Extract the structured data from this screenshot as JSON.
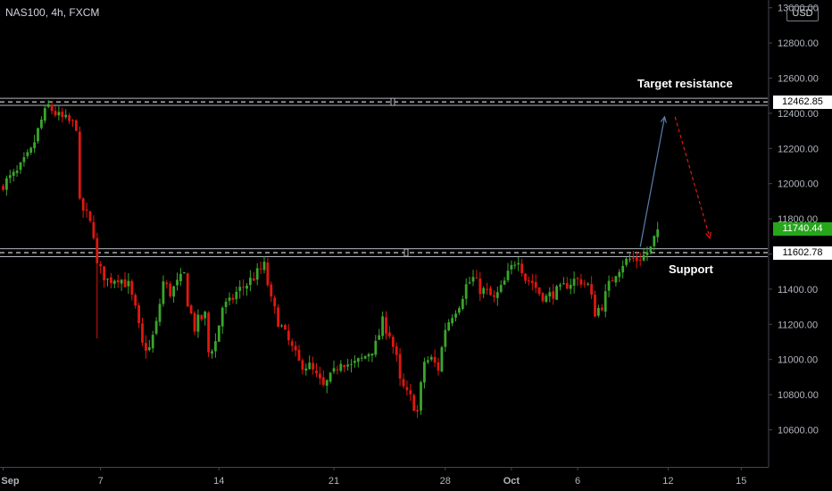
{
  "header": {
    "symbol": "NAS100, 4h, FXCM",
    "currency": "USD"
  },
  "annotations": {
    "target": "Target resistance",
    "support": "Support"
  },
  "price_tags": {
    "resistance": {
      "text": "12462.85",
      "bg": "#ffffff",
      "fg": "#000000"
    },
    "last": {
      "text": "11740.44",
      "bg": "#26a61a",
      "fg": "#ffffff"
    },
    "support": {
      "text": "11602.78",
      "bg": "#ffffff",
      "fg": "#000000"
    }
  },
  "colors": {
    "background": "#000000",
    "up": "#3aa52c",
    "down": "#e0170f",
    "level_line": "#b2b5be",
    "axis_text": "#b2b5be",
    "arrow_up": "#5b7fae",
    "arrow_down": "#e0170f"
  },
  "chart_data": {
    "type": "candlestick",
    "title": "NAS100, 4h, FXCM",
    "y_axis": {
      "side": "right",
      "ticks": [
        10600,
        10800,
        11000,
        11200,
        11400,
        11600,
        11800,
        12000,
        12200,
        12400,
        12600,
        12800,
        13000
      ],
      "tick_labels": [
        "10600.00",
        "10800.00",
        "11000.00",
        "11200.00",
        "11400.00",
        "11600.00",
        "11800.00",
        "12000.00",
        "12200.00",
        "12400.00",
        "12600.00",
        "12800.00",
        "13000.00"
      ],
      "range": [
        10430,
        13030
      ]
    },
    "x_axis": {
      "labels": [
        "Sep",
        "7",
        "14",
        "21",
        "28",
        "Oct",
        "6",
        "12",
        "15"
      ],
      "label_bars": [
        0,
        28,
        62,
        95,
        127,
        146,
        165,
        191,
        212
      ]
    },
    "levels": [
      {
        "name": "Target resistance",
        "low": 12445,
        "high": 12485,
        "label": "12462.85"
      },
      {
        "name": "Support",
        "low": 11585,
        "high": 11630,
        "label": "11602.78"
      }
    ],
    "last_price": 11740.44,
    "projection": [
      {
        "from_bar": 183,
        "from_price": 11640,
        "to_bar": 190,
        "to_price": 12380,
        "color": "blue"
      },
      {
        "from_bar": 193,
        "from_price": 12380,
        "to_bar": 203,
        "to_price": 11690,
        "color": "red",
        "dashed": true
      }
    ],
    "series": [
      {
        "name": "NAS100",
        "points": []
      }
    ]
  }
}
